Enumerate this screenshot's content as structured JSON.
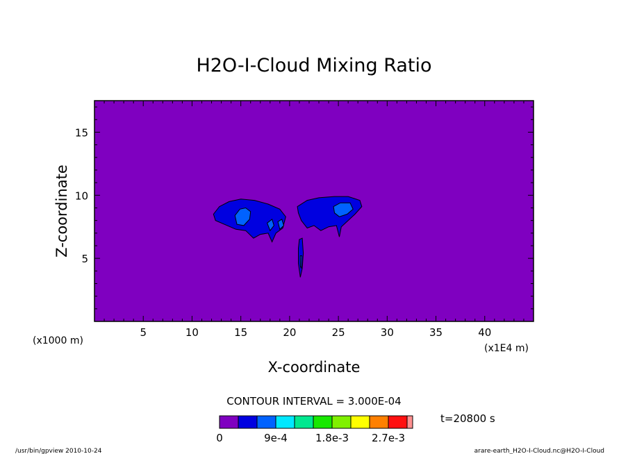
{
  "chart_data": {
    "type": "heatmap",
    "title": "H2O-I-Cloud Mixing Ratio",
    "xlabel": "X-coordinate",
    "ylabel": "Z-coordinate",
    "x_unit": "(x1000 m)",
    "x_unit_right": "(x1E4 m)",
    "xlim": [
      0,
      45
    ],
    "ylim": [
      0,
      17.5
    ],
    "x_ticks": [
      5,
      10,
      15,
      20,
      25,
      30,
      35,
      40
    ],
    "y_ticks": [
      5,
      10,
      15
    ],
    "contour_interval_text": "CONTOUR INTERVAL = 3.000E-04",
    "time_text": "t=20800 s",
    "colorbar": {
      "colors": [
        "#7f00c0",
        "#0000e0",
        "#0062ff",
        "#00e8ff",
        "#00e890",
        "#18e800",
        "#80f000",
        "#ffff00",
        "#ff8000",
        "#ff1010",
        "#ff9090"
      ],
      "labels": [
        "0",
        "9e-4",
        "1.8e-3",
        "2.7e-3"
      ],
      "label_positions": [
        0,
        3,
        6,
        9
      ]
    },
    "regions": [
      {
        "name": "cloud-west",
        "level": 1,
        "points": [
          [
            12.2,
            8.5
          ],
          [
            12.8,
            9.1
          ],
          [
            13.8,
            9.5
          ],
          [
            15.0,
            9.7
          ],
          [
            16.4,
            9.6
          ],
          [
            17.8,
            9.3
          ],
          [
            19.0,
            8.9
          ],
          [
            19.6,
            8.3
          ],
          [
            19.3,
            7.4
          ],
          [
            18.6,
            7.0
          ],
          [
            18.2,
            6.3
          ],
          [
            17.8,
            7.0
          ],
          [
            17.0,
            6.9
          ],
          [
            16.3,
            6.6
          ],
          [
            15.5,
            7.2
          ],
          [
            14.5,
            7.3
          ],
          [
            13.3,
            7.7
          ],
          [
            12.4,
            8.0
          ]
        ]
      },
      {
        "name": "cloud-east",
        "level": 1,
        "points": [
          [
            20.8,
            9.1
          ],
          [
            21.8,
            9.6
          ],
          [
            23.0,
            9.8
          ],
          [
            24.6,
            9.9
          ],
          [
            26.0,
            9.9
          ],
          [
            27.2,
            9.6
          ],
          [
            27.4,
            9.1
          ],
          [
            26.7,
            8.5
          ],
          [
            26.0,
            8.0
          ],
          [
            25.3,
            7.5
          ],
          [
            25.1,
            6.7
          ],
          [
            24.8,
            7.6
          ],
          [
            24.0,
            7.5
          ],
          [
            23.2,
            7.2
          ],
          [
            22.5,
            7.6
          ],
          [
            21.8,
            7.4
          ],
          [
            21.2,
            8.0
          ],
          [
            20.9,
            8.6
          ]
        ]
      },
      {
        "name": "cloud-west-core",
        "level": 2,
        "points": [
          [
            14.4,
            8.4
          ],
          [
            14.9,
            8.9
          ],
          [
            15.5,
            9.0
          ],
          [
            16.0,
            8.7
          ],
          [
            15.9,
            8.1
          ],
          [
            15.3,
            7.6
          ],
          [
            14.6,
            7.7
          ]
        ]
      },
      {
        "name": "cloud-east-core",
        "level": 2,
        "points": [
          [
            24.5,
            9.1
          ],
          [
            25.2,
            9.4
          ],
          [
            26.2,
            9.4
          ],
          [
            26.5,
            8.9
          ],
          [
            25.9,
            8.5
          ],
          [
            25.1,
            8.3
          ],
          [
            24.6,
            8.6
          ]
        ]
      },
      {
        "name": "cloud-small-a",
        "level": 2,
        "points": [
          [
            17.7,
            7.8
          ],
          [
            18.2,
            8.1
          ],
          [
            18.4,
            7.6
          ],
          [
            18.0,
            7.2
          ]
        ]
      },
      {
        "name": "cloud-small-b",
        "level": 2,
        "points": [
          [
            18.8,
            7.9
          ],
          [
            19.2,
            8.1
          ],
          [
            19.4,
            7.6
          ],
          [
            19.0,
            7.3
          ]
        ]
      },
      {
        "name": "cloud-stem",
        "level": 1,
        "points": [
          [
            21.0,
            6.5
          ],
          [
            21.3,
            6.6
          ],
          [
            21.4,
            5.4
          ],
          [
            21.3,
            4.2
          ],
          [
            21.1,
            3.5
          ],
          [
            20.9,
            4.6
          ],
          [
            20.9,
            5.8
          ]
        ]
      },
      {
        "name": "cloud-stem-core",
        "level": 2,
        "points": [
          [
            21.1,
            5.2
          ],
          [
            21.25,
            5.2
          ],
          [
            21.2,
            4.2
          ],
          [
            21.1,
            4.4
          ]
        ]
      }
    ]
  },
  "footer": {
    "left": "/usr/bin/gpview  2010-10-24",
    "right": "arare-earth_H2O-I-Cloud.nc@H2O-I-Cloud"
  }
}
